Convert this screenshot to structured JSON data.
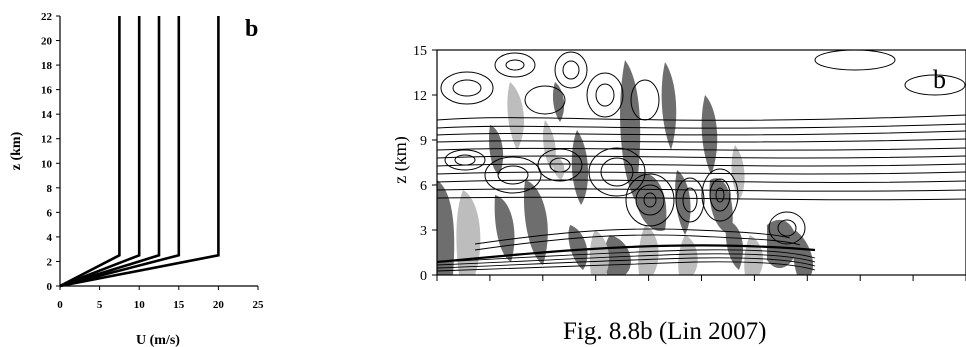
{
  "chart_data": [
    {
      "type": "line",
      "panel_label": "b",
      "xlabel": "U (m/s)",
      "ylabel": "z (km)",
      "xlim": [
        0,
        25
      ],
      "ylim": [
        0,
        22
      ],
      "xticks": [
        0,
        5,
        10,
        15,
        20,
        25
      ],
      "yticks": [
        0,
        2,
        4,
        6,
        8,
        10,
        12,
        14,
        16,
        18,
        20,
        22
      ],
      "series": [
        {
          "values": [
            [
              0,
              0
            ],
            [
              7.5,
              2.5
            ],
            [
              7.5,
              22
            ]
          ]
        },
        {
          "values": [
            [
              0,
              0
            ],
            [
              10,
              2.5
            ],
            [
              10,
              22
            ]
          ]
        },
        {
          "values": [
            [
              0,
              0
            ],
            [
              12.5,
              2.5
            ],
            [
              12.5,
              22
            ]
          ]
        },
        {
          "values": [
            [
              0,
              0
            ],
            [
              15,
              2.5
            ],
            [
              15,
              22
            ]
          ]
        },
        {
          "values": [
            [
              0,
              0
            ],
            [
              20,
              2.5
            ],
            [
              20,
              22
            ]
          ]
        }
      ],
      "grid": false
    },
    {
      "type": "heatmap",
      "panel_label": "b",
      "ylabel": "z (km)",
      "ylim": [
        0,
        15
      ],
      "yticks": [
        0,
        3,
        6,
        9,
        12,
        15
      ],
      "caption": "Fig. 8.8b (Lin 2007)",
      "fill_colors": {
        "dark": "#6e6e6e",
        "light": "#bdbdbd"
      },
      "grid": false
    }
  ]
}
